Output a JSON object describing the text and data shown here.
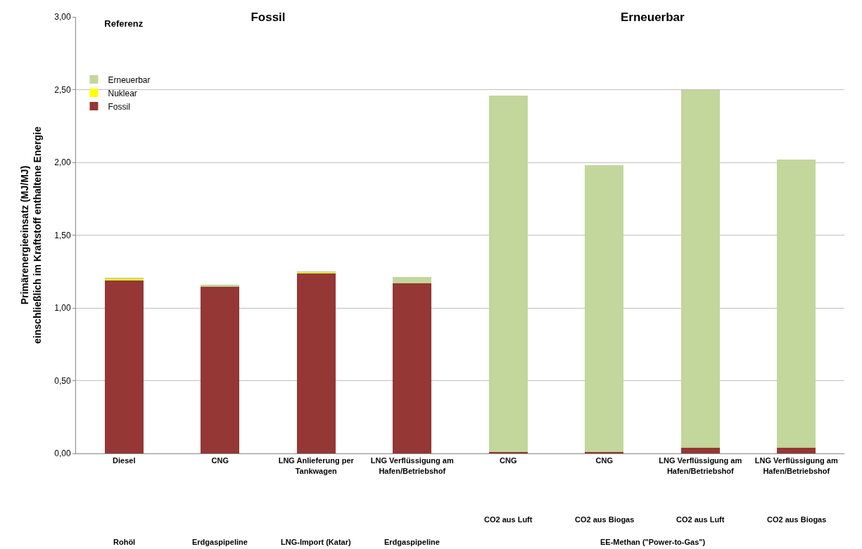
{
  "chart_data": {
    "type": "bar",
    "stacked": true,
    "ylabel": "Primärenergieeinsatz (MJ/MJ)\neinschließlich im Kraftstoff enthaltene Energie",
    "categories": [
      "Diesel",
      "CNG",
      "LNG Anlieferung per Tankwagen",
      "LNG Verflüssigung am Hafen/Betriebshof",
      "CNG",
      "CNG",
      "LNG Verflüssigung am Hafen/Betriebshof",
      "LNG Verflüssigung am Hafen/Betriebshof"
    ],
    "series": [
      {
        "name": "Fossil",
        "color": "#953735",
        "values": [
          1.19,
          1.145,
          1.24,
          1.17,
          0.01,
          0.01,
          0.04,
          0.04
        ]
      },
      {
        "name": "Nuklear",
        "color": "#ffff00",
        "values": [
          0.01,
          null,
          0.005,
          null,
          null,
          null,
          null,
          null
        ]
      },
      {
        "name": "Erneuerbar",
        "color": "#c3d69b",
        "values": [
          0.005,
          0.015,
          0.005,
          0.045,
          2.45,
          1.97,
          2.46,
          1.98
        ]
      }
    ],
    "ylim": [
      0,
      3
    ],
    "yticks": [
      {
        "value": 0,
        "label": "0,00"
      },
      {
        "value": 0.5,
        "label": "0,50"
      },
      {
        "value": 1,
        "label": "1,00"
      },
      {
        "value": 1.5,
        "label": "1,50"
      },
      {
        "value": 2,
        "label": "2,00"
      },
      {
        "value": 2.5,
        "label": "2,50"
      },
      {
        "value": 3,
        "label": "3,00"
      }
    ],
    "grid": "y",
    "legend": "top left",
    "annotations": [
      "Referenz",
      "Fossil",
      "Erneuerbar",
      "CO2 aus Luft",
      "CO2 aus Biogas",
      "CO2 aus Luft",
      "CO2 aus Biogas",
      "Rohöl",
      "Erdgaspipeline",
      "LNG-Import (Katar)",
      "Erdgaspipeline",
      "EE-Methan (\"Power-to-Gas\")"
    ]
  }
}
